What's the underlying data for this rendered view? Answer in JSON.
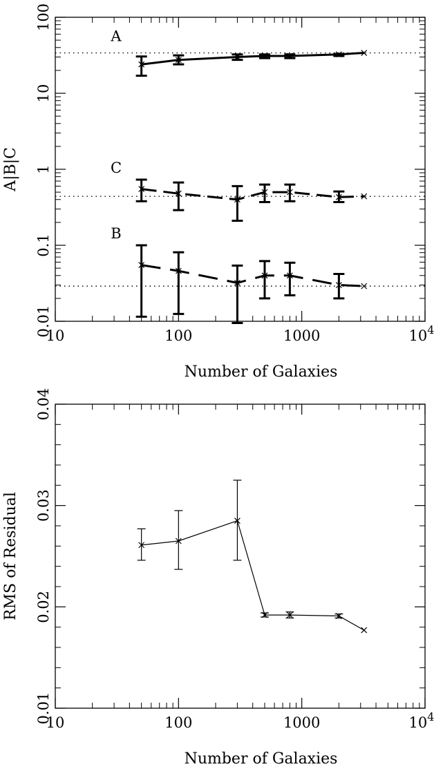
{
  "chart_data": [
    {
      "type": "line",
      "scale": {
        "x": "log",
        "y": "log"
      },
      "xlim": [
        10,
        10000
      ],
      "ylim": [
        0.01,
        100
      ],
      "xlabel": "Number of Galaxies",
      "ylabel": "A|B|C",
      "x_ticks": [
        "10",
        "100",
        "1000",
        "10"
      ],
      "x_tick_last_superscript": "4",
      "y_ticks": [
        "0.01",
        "0.1",
        "1",
        "10",
        "100"
      ],
      "x": [
        50,
        100,
        300,
        500,
        800,
        2000,
        3200
      ],
      "series": [
        {
          "name": "A",
          "values": [
            24,
            27.5,
            30,
            31,
            31,
            32.5,
            34
          ],
          "err_low": [
            17,
            24,
            27.5,
            29,
            29,
            31,
            34
          ],
          "err_high": [
            30.5,
            31.5,
            32.5,
            32.5,
            32.5,
            33,
            34
          ],
          "reference": 34
        },
        {
          "name": "C",
          "values": [
            0.55,
            0.48,
            0.4,
            0.5,
            0.5,
            0.43,
            0.44
          ],
          "err_low": [
            0.38,
            0.29,
            0.21,
            0.37,
            0.38,
            0.37,
            0.44
          ],
          "err_high": [
            0.73,
            0.67,
            0.6,
            0.63,
            0.63,
            0.51,
            0.44
          ],
          "reference": 0.44
        },
        {
          "name": "B",
          "values": [
            0.055,
            0.046,
            0.032,
            0.04,
            0.04,
            0.03,
            0.029
          ],
          "err_low": [
            0.0115,
            0.0125,
            0.0095,
            0.02,
            0.022,
            0.02,
            0.029
          ],
          "err_high": [
            0.1,
            0.081,
            0.054,
            0.062,
            0.059,
            0.042,
            0.029
          ],
          "reference": 0.029
        }
      ]
    },
    {
      "type": "line",
      "scale": {
        "x": "log",
        "y": "linear"
      },
      "xlim": [
        10,
        10000
      ],
      "ylim": [
        0.01,
        0.04
      ],
      "xlabel": "Number of Galaxies",
      "ylabel": "RMS of Residual",
      "x_ticks": [
        "10",
        "100",
        "1000",
        "10"
      ],
      "x_tick_last_superscript": "4",
      "y_ticks": [
        "0.01",
        "0.02",
        "0.03",
        "0.04"
      ],
      "x": [
        50,
        100,
        300,
        500,
        800,
        2000,
        3200
      ],
      "values": [
        0.0261,
        0.0265,
        0.0285,
        0.0192,
        0.0192,
        0.0191,
        0.0177
      ],
      "err_low": [
        0.0246,
        0.0237,
        0.0246,
        0.019,
        0.0189,
        0.0189,
        0.0177
      ],
      "err_high": [
        0.0277,
        0.0295,
        0.0325,
        0.0194,
        0.0195,
        0.0193,
        0.0177
      ]
    }
  ]
}
